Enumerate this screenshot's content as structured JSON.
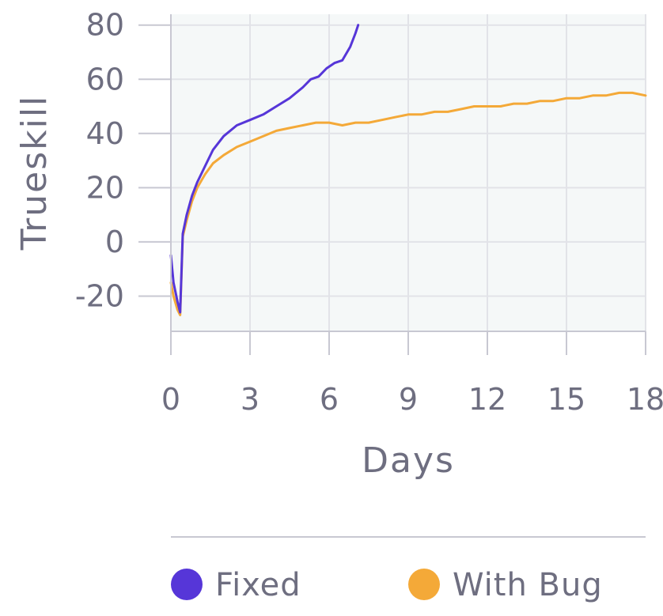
{
  "chart_data": {
    "type": "line",
    "xlabel": "Days",
    "ylabel": "Trueskill",
    "xlim": [
      0,
      18
    ],
    "ylim": [
      -33,
      84
    ],
    "xticks": [
      0,
      3,
      6,
      9,
      12,
      15,
      18
    ],
    "yticks": [
      -20,
      0,
      20,
      40,
      60,
      80
    ],
    "xtick_labels": [
      "0",
      "3",
      "6",
      "9",
      "12",
      "15",
      "18"
    ],
    "ytick_labels": [
      "-20",
      "0",
      "20",
      "40",
      "60",
      "80"
    ],
    "grid": true,
    "legend_position": "bottom",
    "plot_background": "#f5f8f8",
    "grid_color": "#e2e3e8",
    "axis_color": "#c8c8d2",
    "series": [
      {
        "name": "With Bug",
        "color": "#f4a938",
        "x": [
          0,
          0.1,
          0.25,
          0.35,
          0.45,
          0.6,
          0.8,
          1.0,
          1.3,
          1.6,
          2.0,
          2.5,
          3.0,
          3.5,
          4.0,
          4.5,
          5.0,
          5.5,
          6.0,
          6.5,
          7.0,
          7.5,
          8.0,
          8.5,
          9.0,
          9.5,
          10.0,
          10.5,
          11.0,
          11.5,
          12.0,
          12.5,
          13.0,
          13.5,
          14.0,
          14.5,
          15.0,
          15.5,
          16.0,
          16.5,
          17.0,
          17.5,
          18.0
        ],
        "y": [
          -15,
          -20,
          -25,
          -27,
          2,
          8,
          15,
          20,
          25,
          29,
          32,
          35,
          37,
          39,
          41,
          42,
          43,
          44,
          44,
          43,
          44,
          44,
          45,
          46,
          47,
          47,
          48,
          48,
          49,
          50,
          50,
          50,
          51,
          51,
          52,
          52,
          53,
          53,
          54,
          54,
          55,
          55,
          54
        ]
      },
      {
        "name": "Fixed",
        "color": "#5636d8",
        "x": [
          0,
          0.1,
          0.25,
          0.35,
          0.45,
          0.6,
          0.8,
          1.0,
          1.3,
          1.6,
          2.0,
          2.5,
          3.0,
          3.5,
          4.0,
          4.5,
          5.0,
          5.3,
          5.6,
          5.9,
          6.2,
          6.5,
          6.8,
          7.0,
          7.1
        ],
        "y": [
          -5,
          -15,
          -22,
          -26,
          3,
          10,
          17,
          22,
          28,
          34,
          39,
          43,
          45,
          47,
          50,
          53,
          57,
          60,
          61,
          64,
          66,
          67,
          72,
          77,
          80
        ]
      }
    ]
  }
}
